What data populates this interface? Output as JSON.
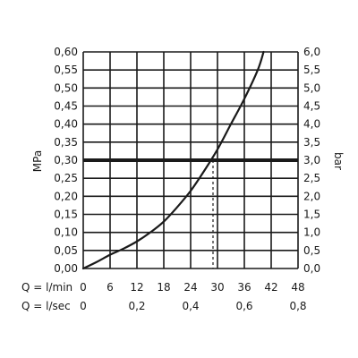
{
  "chart_data": {
    "type": "line",
    "y_left": {
      "label": "MPa",
      "range": [
        0,
        0.6
      ],
      "ticks": [
        "0,00",
        "0,05",
        "0,10",
        "0,15",
        "0,20",
        "0,25",
        "0,30",
        "0,35",
        "0,40",
        "0,45",
        "0,50",
        "0,55",
        "0,60"
      ]
    },
    "y_right": {
      "label": "bar",
      "range": [
        0,
        6
      ],
      "ticks": [
        "0,0",
        "0,5",
        "1,0",
        "1,5",
        "2,0",
        "2,5",
        "3,0",
        "3,5",
        "4,0",
        "4,5",
        "5,0",
        "5,5",
        "6,0"
      ]
    },
    "x_primary": {
      "label": "Q = l/min",
      "range": [
        0,
        48
      ],
      "ticks": [
        "0",
        "6",
        "12",
        "18",
        "24",
        "30",
        "36",
        "42",
        "48"
      ]
    },
    "x_secondary": {
      "label": "Q = l/sec",
      "range": [
        0,
        0.8
      ],
      "ticks": [
        "0",
        "0,2",
        "0,4",
        "0,6",
        "0,8"
      ]
    },
    "grid": true,
    "series": [
      {
        "x": [
          0,
          3,
          6,
          9,
          12,
          15,
          18,
          21,
          24,
          27,
          30,
          33,
          36,
          39,
          40.3
        ],
        "y": [
          0.0,
          0.018,
          0.038,
          0.055,
          0.075,
          0.1,
          0.13,
          0.17,
          0.215,
          0.27,
          0.33,
          0.4,
          0.47,
          0.55,
          0.6
        ]
      }
    ],
    "reference_line": {
      "y": 0.3,
      "intersection_x": 29
    },
    "colors": {
      "curve": "#1a1a1a",
      "grid": "#1a1a1a",
      "reference": "#1a1a1a"
    }
  }
}
